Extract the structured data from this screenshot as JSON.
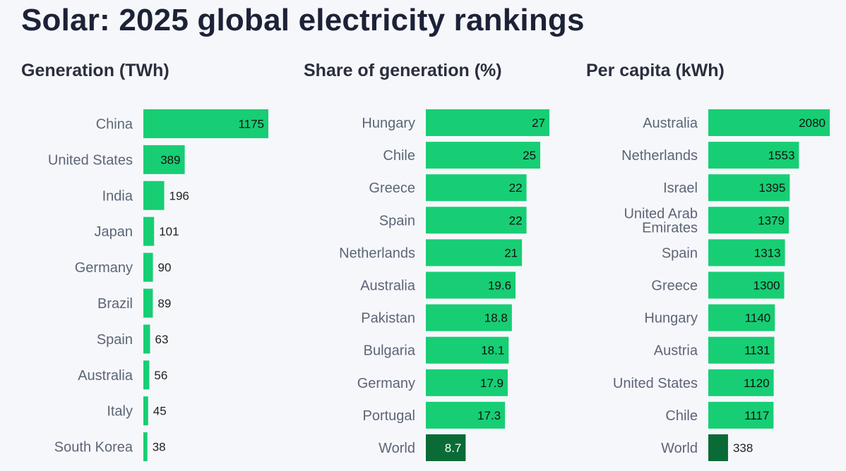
{
  "title": "Solar: 2025 global electricity rankings",
  "colors": {
    "bar": "#17ce74",
    "highlight": "#0a6b36",
    "text": "#5c6577"
  },
  "chart_data": [
    {
      "type": "bar",
      "orientation": "horizontal",
      "title": "Generation (TWh)",
      "categories": [
        "China",
        "United States",
        "India",
        "Japan",
        "Germany",
        "Brazil",
        "Spain",
        "Australia",
        "Italy",
        "South Korea"
      ],
      "values": [
        1175,
        389,
        196,
        101,
        90,
        89,
        63,
        56,
        45,
        38
      ],
      "value_labels": [
        "1175",
        "389",
        "196",
        "101",
        "90",
        "89",
        "63",
        "56",
        "45",
        "38"
      ],
      "xlim": [
        0,
        1175
      ]
    },
    {
      "type": "bar",
      "orientation": "horizontal",
      "title": "Share of generation (%)",
      "categories": [
        "Hungary",
        "Chile",
        "Greece",
        "Spain",
        "Netherlands",
        "Australia",
        "Pakistan",
        "Bulgaria",
        "Germany",
        "Portugal",
        "World"
      ],
      "values": [
        27,
        25,
        22,
        22,
        21,
        19.6,
        18.8,
        18.1,
        17.9,
        17.3,
        8.7
      ],
      "value_labels": [
        "27",
        "25",
        "22",
        "22",
        "21",
        "19.6",
        "18.8",
        "18.1",
        "17.9",
        "17.3",
        "8.7"
      ],
      "highlight": [
        "World"
      ],
      "xlim": [
        0,
        27
      ]
    },
    {
      "type": "bar",
      "orientation": "horizontal",
      "title": "Per capita (kWh)",
      "categories": [
        "Australia",
        "Netherlands",
        "Israel",
        "United Arab Emirates",
        "Spain",
        "Greece",
        "Hungary",
        "Austria",
        "United States",
        "Chile",
        "World"
      ],
      "values": [
        2080,
        1553,
        1395,
        1379,
        1313,
        1300,
        1140,
        1131,
        1120,
        1117,
        338
      ],
      "value_labels": [
        "2080",
        "1553",
        "1395",
        "1379",
        "1313",
        "1300",
        "1140",
        "1131",
        "1120",
        "1117",
        "338"
      ],
      "highlight": [
        "World"
      ],
      "xlim": [
        0,
        2080
      ]
    }
  ]
}
